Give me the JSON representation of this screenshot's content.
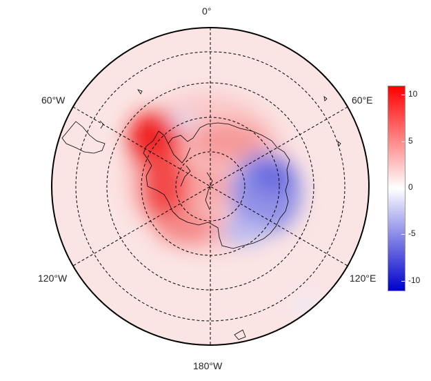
{
  "map": {
    "projection": "south-polar-stereographic",
    "longitude_labels": {
      "top": "0°",
      "upper_left": "60°W",
      "upper_right": "60°E",
      "lower_left": "120°W",
      "lower_right": "120°E",
      "bottom": "180°W"
    },
    "graticule": {
      "meridians_deg": [
        0,
        60,
        120,
        180,
        240,
        300
      ],
      "latitude_circles": 4
    },
    "colors": {
      "positive": "#ff0000",
      "zero": "#ffffff",
      "negative": "#0000cc",
      "outline": "#000000"
    }
  },
  "colorbar": {
    "min": -11,
    "max": 11,
    "ticks": [
      "10",
      "5",
      "0",
      "-5",
      "-10"
    ],
    "tick_values": [
      10,
      5,
      0,
      -5,
      -10
    ]
  }
}
